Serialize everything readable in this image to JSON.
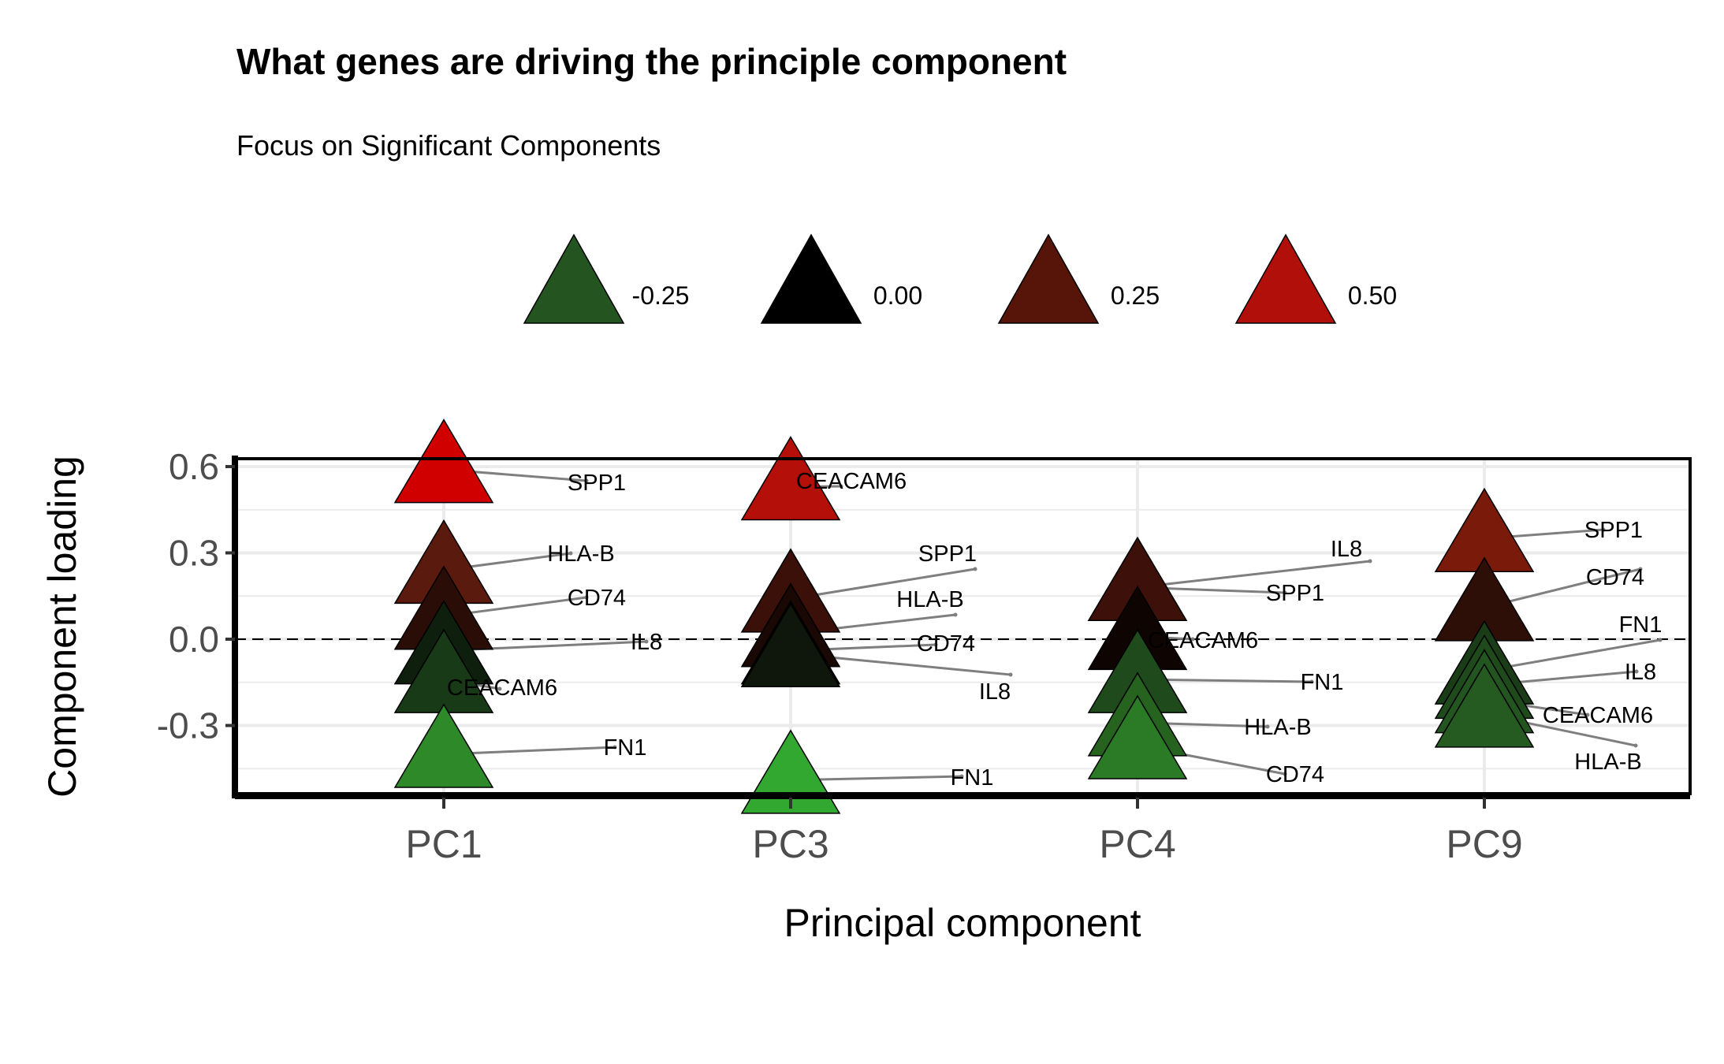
{
  "chart_data": {
    "type": "scatter",
    "title": "What genes are driving the principle component",
    "subtitle": "Focus on Significant Components",
    "xlabel": "Principal component",
    "ylabel": "Component loading",
    "categories": [
      "PC1",
      "PC3",
      "PC4",
      "PC9"
    ],
    "ylim": [
      -0.52,
      0.62
    ],
    "yticks": [
      0.6,
      0.3,
      0.0,
      -0.3
    ],
    "ytick_labels": [
      "0.6",
      "0.3",
      "0.0",
      "-0.3"
    ],
    "reference_line": 0.0,
    "grid": true,
    "legend": {
      "position": "top",
      "entries": [
        {
          "label": "-0.25",
          "color": "#245520"
        },
        {
          "label": "0.00",
          "color": "#000000"
        },
        {
          "label": "0.25",
          "color": "#571509"
        },
        {
          "label": "0.50",
          "color": "#b1100a"
        }
      ]
    },
    "points": [
      {
        "pc": "PC1",
        "gene": "SPP1",
        "loading": 0.59,
        "color": "#d10000"
      },
      {
        "pc": "PC1",
        "gene": "HLA-B",
        "loading": 0.24,
        "color": "#5a1a0e"
      },
      {
        "pc": "PC1",
        "gene": "CD74",
        "loading": 0.08,
        "color": "#2a0d07"
      },
      {
        "pc": "PC1",
        "gene": "IL8",
        "loading": -0.04,
        "color": "#0f1f0d"
      },
      {
        "pc": "PC1",
        "gene": "CEACAM6",
        "loading": -0.14,
        "color": "#183a16"
      },
      {
        "pc": "PC1",
        "gene": "FN1",
        "loading": -0.4,
        "color": "#2e8a28"
      },
      {
        "pc": "PC3",
        "gene": "CEACAM6",
        "loading": 0.53,
        "color": "#b50f0a"
      },
      {
        "pc": "PC3",
        "gene": "SPP1",
        "loading": 0.14,
        "color": "#3a1008"
      },
      {
        "pc": "PC3",
        "gene": "HLA-B",
        "loading": 0.02,
        "color": "#1a0805"
      },
      {
        "pc": "PC3",
        "gene": "CD74",
        "loading": -0.04,
        "color": "#0d0503"
      },
      {
        "pc": "PC3",
        "gene": "IL8",
        "loading": -0.05,
        "color": "#0f160c"
      },
      {
        "pc": "PC3",
        "gene": "FN1",
        "loading": -0.49,
        "color": "#32a830"
      },
      {
        "pc": "PC4",
        "gene": "IL8",
        "loading": 0.18,
        "color": "#4a150b"
      },
      {
        "pc": "PC4",
        "gene": "SPP1",
        "loading": 0.18,
        "color": "#3d110a"
      },
      {
        "pc": "PC4",
        "gene": "CEACAM6",
        "loading": 0.01,
        "color": "#0e0503"
      },
      {
        "pc": "PC4",
        "gene": "FN1",
        "loading": -0.14,
        "color": "#1f4a1c"
      },
      {
        "pc": "PC4",
        "gene": "HLA-B",
        "loading": -0.29,
        "color": "#25631f"
      },
      {
        "pc": "PC4",
        "gene": "CD74",
        "loading": -0.37,
        "color": "#2b7a25"
      },
      {
        "pc": "PC9",
        "gene": "SPP1",
        "loading": 0.35,
        "color": "#7a1a0b"
      },
      {
        "pc": "PC9",
        "gene": "CD74",
        "loading": 0.11,
        "color": "#2d0f08"
      },
      {
        "pc": "PC9",
        "gene": "FN1",
        "loading": -0.11,
        "color": "#1a3d18"
      },
      {
        "pc": "PC9",
        "gene": "IL8",
        "loading": -0.16,
        "color": "#1f4a1c"
      },
      {
        "pc": "PC9",
        "gene": "CEACAM6",
        "loading": -0.21,
        "color": "#235520"
      },
      {
        "pc": "PC9",
        "gene": "HLA-B",
        "loading": -0.26,
        "color": "#255a21"
      }
    ]
  }
}
